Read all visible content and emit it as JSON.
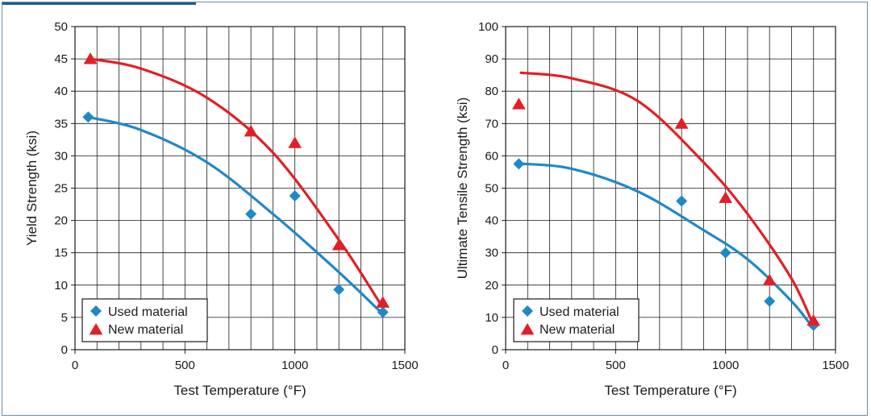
{
  "colors": {
    "used": "#1f88c8",
    "new": "#e21f26",
    "grid": "#1a1a1a",
    "frame": "#6b8da6"
  },
  "chart_data": [
    {
      "type": "scatter",
      "title": "",
      "xlabel": "Test Temperature (°F)",
      "ylabel": "Yield Strength (ksi)",
      "xlim": [
        0,
        1500
      ],
      "ylim": [
        0,
        50
      ],
      "xticks": [
        0,
        500,
        1000,
        1500
      ],
      "yticks": [
        0,
        5,
        10,
        15,
        20,
        25,
        30,
        35,
        40,
        45,
        50
      ],
      "grid": true,
      "legend_position": "bottom-left",
      "series": [
        {
          "name": "Used material",
          "marker": "diamond",
          "color": "#1f88c8",
          "points": [
            [
              60,
              36
            ],
            [
              800,
              21
            ],
            [
              1000,
              23.8
            ],
            [
              1200,
              9.3
            ],
            [
              1400,
              5.8
            ]
          ],
          "trend": [
            [
              60,
              36
            ],
            [
              300,
              34
            ],
            [
              600,
              29
            ],
            [
              900,
              21
            ],
            [
              1200,
              12
            ],
            [
              1400,
              5.5
            ]
          ]
        },
        {
          "name": "New material",
          "marker": "triangle",
          "color": "#e21f26",
          "points": [
            [
              70,
              45
            ],
            [
              800,
              33.8
            ],
            [
              1000,
              32
            ],
            [
              1200,
              16.2
            ],
            [
              1400,
              7.3
            ]
          ],
          "trend": [
            [
              70,
              45
            ],
            [
              300,
              43.5
            ],
            [
              600,
              39
            ],
            [
              900,
              30.5
            ],
            [
              1200,
              17
            ],
            [
              1400,
              6.5
            ]
          ]
        }
      ]
    },
    {
      "type": "scatter",
      "title": "",
      "xlabel": "Test Temperature (°F)",
      "ylabel": "Ultimate Tensile Strength (ksi)",
      "xlim": [
        0,
        1500
      ],
      "ylim": [
        0,
        100
      ],
      "xticks": [
        0,
        500,
        1000,
        1500
      ],
      "yticks": [
        0,
        10,
        20,
        30,
        40,
        50,
        60,
        70,
        80,
        90,
        100
      ],
      "grid": true,
      "legend_position": "bottom-left",
      "series": [
        {
          "name": "Used material",
          "marker": "diamond",
          "color": "#1f88c8",
          "points": [
            [
              60,
              57.5
            ],
            [
              800,
              46
            ],
            [
              1000,
              30
            ],
            [
              1200,
              15
            ],
            [
              1400,
              7.5
            ]
          ],
          "trend": [
            [
              60,
              57.6
            ],
            [
              300,
              56
            ],
            [
              600,
              49
            ],
            [
              900,
              37
            ],
            [
              1100,
              28
            ],
            [
              1300,
              15
            ],
            [
              1400,
              6.5
            ]
          ]
        },
        {
          "name": "New material",
          "marker": "triangle",
          "color": "#e21f26",
          "points": [
            [
              60,
              76
            ],
            [
              800,
              70
            ],
            [
              1000,
              47
            ],
            [
              1200,
              21.5
            ],
            [
              1400,
              9
            ]
          ],
          "trend": [
            [
              70,
              85.7
            ],
            [
              300,
              84
            ],
            [
              600,
              77
            ],
            [
              900,
              58
            ],
            [
              1100,
              42
            ],
            [
              1300,
              22
            ],
            [
              1400,
              7.5
            ]
          ]
        }
      ]
    }
  ]
}
